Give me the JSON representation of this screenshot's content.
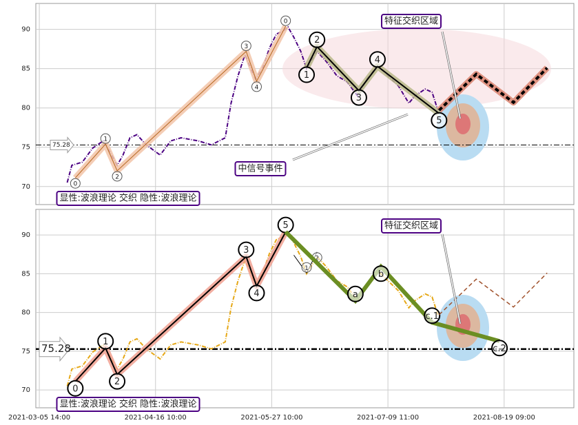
{
  "chart_data": [
    {
      "type": "line",
      "xlim": [
        -0.03,
        4.6
      ],
      "ylim": [
        67.7,
        93.3
      ],
      "yticks": [
        70,
        75,
        80,
        85,
        90
      ],
      "grid": true,
      "hline": 75.28,
      "series": [
        {
          "color": "#4b0082",
          "style": "dashdot",
          "width": 2,
          "x": [
            0.24,
            0.28,
            0.37,
            0.46,
            0.55,
            0.6,
            0.67,
            0.72,
            0.78,
            0.84,
            0.92,
            1.04,
            1.13,
            1.22,
            1.37,
            1.48,
            1.6,
            1.65,
            1.71,
            1.77,
            1.82,
            1.86,
            1.92,
            1.98,
            2.04,
            2.1,
            2.14,
            2.19,
            2.25,
            2.3,
            2.39,
            2.47,
            2.56,
            2.65,
            2.74,
            2.82,
            2.91,
            3.0,
            3.09,
            3.18,
            3.23,
            3.32,
            3.38,
            3.43
          ],
          "values": [
            70.5,
            72.7,
            73.1,
            74.9,
            75.8,
            74.6,
            72.7,
            74,
            76.2,
            76.6,
            75.3,
            74,
            75.8,
            76.2,
            75.8,
            75.3,
            76.2,
            80.6,
            84.1,
            86.8,
            85,
            83.7,
            85,
            87.6,
            89.4,
            89.8,
            90.3,
            89,
            87.2,
            85,
            87.2,
            85.9,
            84.1,
            83.3,
            81.5,
            83.7,
            85.4,
            84.1,
            82.8,
            80.6,
            81.5,
            82.4,
            82,
            79.7
          ]
        },
        {
          "color": "#b5651d",
          "halo": "#f2c4a8",
          "width": 1,
          "marker": "small",
          "x": [
            0.31,
            0.57,
            0.67,
            1.78,
            1.87,
            2.12
          ],
          "values": [
            71.1,
            75.4,
            72,
            87.2,
            83.4,
            90.4
          ],
          "point_labels": [
            "0",
            "1",
            "2",
            "3",
            "4",
            "0"
          ]
        },
        {
          "color": "#000000",
          "halo": "#b8b88a",
          "width": 2,
          "marker": "big",
          "x": [
            2.3,
            2.39,
            2.75,
            2.91,
            3.44
          ],
          "values": [
            85.1,
            87.8,
            82.2,
            85.3,
            79.3
          ],
          "point_labels": [
            "1",
            "2",
            "3",
            "4",
            "5"
          ]
        },
        {
          "color": "#000000",
          "halo": "#d9826e",
          "width": 4,
          "style": "dashed",
          "x": [
            3.44,
            3.76,
            4.08,
            4.37
          ],
          "values": [
            79.7,
            84.3,
            80.7,
            85.1
          ]
        }
      ],
      "annotations": [
        "特征交织区域",
        "中信号事件",
        "显性:波浪理论 交织 隐性:波浪理论"
      ]
    },
    {
      "type": "line",
      "xlim": [
        -0.03,
        4.6
      ],
      "ylim": [
        67.7,
        93.3
      ],
      "yticks": [
        70,
        75,
        80,
        85,
        90
      ],
      "grid": true,
      "xticks": [
        {
          "value": 0,
          "label": "2021-03-05 14:00"
        },
        {
          "value": 1,
          "label": "2021-04-16 10:00"
        },
        {
          "value": 2,
          "label": "2021-05-27 10:00"
        },
        {
          "value": 3,
          "label": "2021-07-09 11:00"
        },
        {
          "value": 4,
          "label": "2021-08-19 09:00"
        }
      ],
      "hline": 75.28,
      "series": [
        {
          "color": "#e6a817",
          "style": "dashdot",
          "width": 2,
          "x": [
            0.24,
            0.28,
            0.37,
            0.46,
            0.55,
            0.6,
            0.67,
            0.72,
            0.78,
            0.84,
            0.92,
            1.04,
            1.13,
            1.22,
            1.37,
            1.48,
            1.6,
            1.65,
            1.71,
            1.77,
            1.82,
            1.86,
            1.92,
            1.98,
            2.04,
            2.1,
            2.14,
            2.19,
            2.25,
            2.3,
            2.39,
            2.47,
            2.56,
            2.65,
            2.74,
            2.82,
            2.91,
            3.0,
            3.09,
            3.18,
            3.23,
            3.32,
            3.38,
            3.43
          ],
          "values": [
            70.5,
            72.7,
            73.1,
            74.9,
            75.8,
            74.6,
            72.7,
            74,
            76.2,
            76.6,
            75.3,
            74,
            75.8,
            76.2,
            75.8,
            75.3,
            76.2,
            80.6,
            84.1,
            86.8,
            85,
            83.7,
            85,
            87.6,
            89.4,
            89.8,
            90.3,
            89,
            87.2,
            85,
            87.2,
            85.9,
            84.1,
            83.3,
            81.5,
            83.7,
            85.4,
            84.1,
            82.8,
            80.6,
            81.5,
            82.4,
            82,
            79.7
          ]
        },
        {
          "color": "#000000",
          "halo": "#f0a090",
          "width": 2,
          "marker": "big",
          "x": [
            0.31,
            0.57,
            0.67,
            1.78,
            1.87,
            2.12
          ],
          "values": [
            71.1,
            75.4,
            72,
            87.2,
            83.4,
            90.4
          ],
          "point_labels": [
            "0",
            "1",
            "2",
            "3",
            "4",
            "5"
          ]
        },
        {
          "color": "#000000",
          "width": 1,
          "marker": "small",
          "x": [
            2.19,
            2.3,
            2.39
          ],
          "values": [
            87.4,
            85.1,
            87.8
          ],
          "point_labels": [
            null,
            "1",
            "2"
          ]
        },
        {
          "color": "#6b8e23",
          "width": 6,
          "marker": "big",
          "x": [
            2.12,
            2.72,
            2.94,
            3.38,
            3.96
          ],
          "values": [
            90.4,
            81.5,
            85.9,
            78.7,
            76.3
          ],
          "point_labels": [
            null,
            "a",
            "b",
            "c.1",
            "c.2"
          ]
        },
        {
          "color": "#a0522d",
          "width": 1.5,
          "style": "dashed",
          "x": [
            3.44,
            3.76,
            4.08,
            4.37
          ],
          "values": [
            79.7,
            84.3,
            80.7,
            85.1
          ]
        }
      ],
      "annotations": [
        "特征交织区域",
        "显性:波浪理论 交织 隐性:波浪理论"
      ]
    }
  ]
}
